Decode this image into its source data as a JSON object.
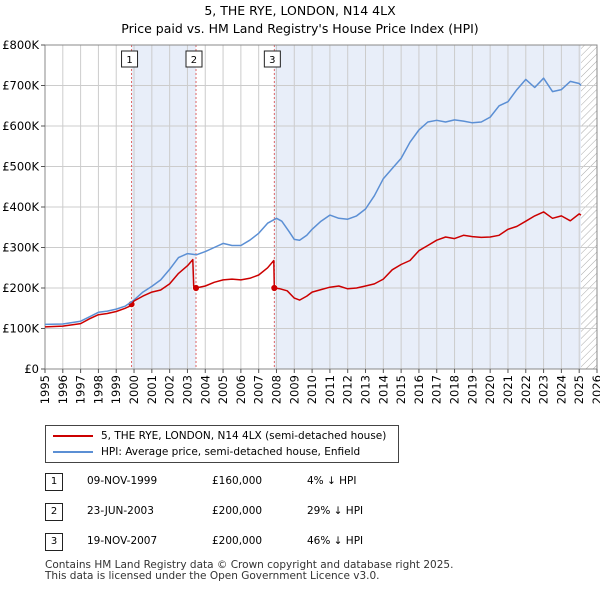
{
  "title_line1": "5, THE RYE, LONDON, N14 4LX",
  "title_line2": "Price paid vs. HM Land Registry's House Price Index (HPI)",
  "legend": {
    "property_label": "5, THE RYE, LONDON, N14 4LX (semi-detached house)",
    "hpi_label": "HPI: Average price, semi-detached house, Enfield"
  },
  "sales": [
    {
      "num": "1",
      "date": "09-NOV-1999",
      "price": "£160,000",
      "hpi": "4% ↓ HPI"
    },
    {
      "num": "2",
      "date": "23-JUN-2003",
      "price": "£200,000",
      "hpi": "29% ↓ HPI"
    },
    {
      "num": "3",
      "date": "19-NOV-2007",
      "price": "£200,000",
      "hpi": "46% ↓ HPI"
    }
  ],
  "footer_line1": "Contains HM Land Registry data © Crown copyright and database right 2025.",
  "footer_line2": "This data is licensed under the Open Government Licence v3.0.",
  "colors": {
    "property": "#cc0000",
    "hpi": "#5b8fd4",
    "shade": "#e8eef9",
    "grid": "#cccccc"
  },
  "chart_data": {
    "type": "line",
    "xlim": [
      1995,
      2026
    ],
    "ylim": [
      0,
      800000
    ],
    "x_ticks": [
      "1995",
      "1996",
      "1997",
      "1998",
      "1999",
      "2000",
      "2001",
      "2002",
      "2003",
      "2004",
      "2005",
      "2006",
      "2007",
      "2008",
      "2009",
      "2010",
      "2011",
      "2012",
      "2013",
      "2014",
      "2015",
      "2016",
      "2017",
      "2018",
      "2019",
      "2020",
      "2021",
      "2022",
      "2023",
      "2024",
      "2025",
      "2026"
    ],
    "y_ticks": [
      {
        "value": 0,
        "label": "£0"
      },
      {
        "value": 100000,
        "label": "£100K"
      },
      {
        "value": 200000,
        "label": "£200K"
      },
      {
        "value": 300000,
        "label": "£300K"
      },
      {
        "value": 400000,
        "label": "£400K"
      },
      {
        "value": 500000,
        "label": "£500K"
      },
      {
        "value": 600000,
        "label": "£600K"
      },
      {
        "value": 700000,
        "label": "£700K"
      },
      {
        "value": 800000,
        "label": "£800K"
      }
    ],
    "shaded_periods": [
      [
        1999.86,
        2003.48
      ],
      [
        2007.88,
        2025.1
      ]
    ],
    "hatched_from": 2025.1,
    "sale_markers": [
      {
        "label": "1",
        "x": 1999.86,
        "y": 160000
      },
      {
        "label": "2",
        "x": 2003.48,
        "y": 200000
      },
      {
        "label": "3",
        "x": 2007.88,
        "y": 200000
      }
    ],
    "series": [
      {
        "name": "5, THE RYE, LONDON, N14 4LX (semi-detached house)",
        "x": [
          1995,
          1996,
          1997,
          1997.5,
          1998,
          1998.5,
          1999,
          1999.5,
          1999.85,
          1999.86,
          2000,
          2000.5,
          2001,
          2001.5,
          2002,
          2002.5,
          2003,
          2003.3,
          2003.35,
          2003.48,
          2004,
          2004.5,
          2005,
          2005.5,
          2006,
          2006.5,
          2007,
          2007.5,
          2007.85,
          2007.88,
          2008.2,
          2008.6,
          2009,
          2009.3,
          2009.7,
          2010,
          2010.5,
          2011,
          2011.5,
          2012,
          2012.5,
          2013,
          2013.5,
          2014,
          2014.5,
          2015,
          2015.5,
          2016,
          2016.5,
          2017,
          2017.5,
          2018,
          2018.5,
          2019,
          2019.5,
          2020,
          2020.5,
          2021,
          2021.5,
          2022,
          2022.5,
          2023,
          2023.5,
          2024,
          2024.5,
          2025,
          2025.1
        ],
        "y": [
          104000,
          106000,
          112000,
          124000,
          134000,
          137000,
          142000,
          150000,
          157000,
          160000,
          168000,
          180000,
          190000,
          195000,
          210000,
          236000,
          255000,
          270000,
          205000,
          200000,
          205000,
          214000,
          220000,
          222000,
          220000,
          224000,
          232000,
          250000,
          268000,
          200000,
          198000,
          193000,
          175000,
          170000,
          180000,
          190000,
          196000,
          202000,
          205000,
          198000,
          200000,
          205000,
          210000,
          222000,
          245000,
          258000,
          268000,
          292000,
          305000,
          318000,
          326000,
          322000,
          330000,
          327000,
          325000,
          326000,
          330000,
          345000,
          352000,
          365000,
          378000,
          388000,
          372000,
          378000,
          366000,
          383000,
          380000
        ]
      },
      {
        "name": "HPI: Average price, semi-detached house, Enfield",
        "x": [
          1995,
          1996,
          1997,
          1997.5,
          1998,
          1998.5,
          1999,
          1999.5,
          2000,
          2000.5,
          2001,
          2001.5,
          2002,
          2002.5,
          2003,
          2003.5,
          2004,
          2004.5,
          2005,
          2005.5,
          2006,
          2006.5,
          2007,
          2007.5,
          2008,
          2008.3,
          2008.7,
          2009,
          2009.3,
          2009.7,
          2010,
          2010.5,
          2011,
          2011.5,
          2012,
          2012.5,
          2013,
          2013.5,
          2014,
          2014.5,
          2015,
          2015.5,
          2016,
          2016.5,
          2017,
          2017.5,
          2018,
          2018.5,
          2019,
          2019.5,
          2020,
          2020.5,
          2021,
          2021.5,
          2022,
          2022.5,
          2023,
          2023.5,
          2024,
          2024.5,
          2025,
          2025.1
        ],
        "y": [
          110000,
          111000,
          118000,
          129000,
          140000,
          143000,
          148000,
          155000,
          170000,
          190000,
          204000,
          220000,
          246000,
          275000,
          285000,
          282000,
          290000,
          300000,
          310000,
          305000,
          305000,
          318000,
          335000,
          360000,
          372000,
          365000,
          340000,
          320000,
          318000,
          330000,
          345000,
          365000,
          380000,
          372000,
          370000,
          378000,
          395000,
          428000,
          470000,
          495000,
          520000,
          560000,
          590000,
          610000,
          614000,
          610000,
          615000,
          612000,
          608000,
          610000,
          622000,
          650000,
          660000,
          690000,
          715000,
          695000,
          718000,
          685000,
          690000,
          710000,
          705000,
          700000
        ]
      }
    ]
  }
}
